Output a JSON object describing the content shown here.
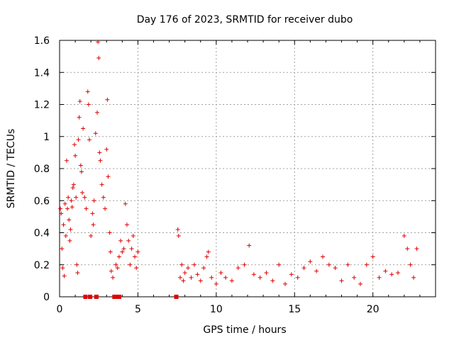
{
  "chart_data": {
    "type": "scatter",
    "title": "Day 176 of 2023, SRMTID for receiver dubo",
    "xlabel": "GPS time / hours",
    "ylabel": "SRMTID / TECUs",
    "xlim": [
      0,
      24
    ],
    "ylim": [
      0,
      1.6
    ],
    "xticks": [
      0,
      5,
      10,
      15,
      20
    ],
    "yticks": [
      0,
      0.2,
      0.4,
      0.6,
      0.8,
      1,
      1.2,
      1.4,
      1.6
    ],
    "xtick_labels": [
      "0",
      "5",
      "10",
      "15",
      "20"
    ],
    "ytick_labels": [
      "0",
      "0.2",
      "0.4",
      "0.6",
      "0.8",
      "1",
      "1.2",
      "1.4",
      "1.6"
    ],
    "grid": true,
    "marker": "+",
    "color": "#e00000",
    "series": [
      {
        "name": "dubo",
        "points": [
          [
            0.05,
            0.55
          ],
          [
            0.1,
            0.52
          ],
          [
            0.15,
            0.3
          ],
          [
            0.2,
            0.18
          ],
          [
            0.25,
            0.45
          ],
          [
            0.3,
            0.13
          ],
          [
            0.35,
            0.58
          ],
          [
            0.4,
            0.38
          ],
          [
            0.45,
            0.85
          ],
          [
            0.5,
            0.55
          ],
          [
            0.55,
            0.62
          ],
          [
            0.6,
            0.48
          ],
          [
            0.65,
            0.35
          ],
          [
            0.7,
            0.42
          ],
          [
            0.75,
            0.6
          ],
          [
            0.8,
            0.56
          ],
          [
            0.85,
            0.68
          ],
          [
            0.9,
            0.7
          ],
          [
            0.95,
            0.95
          ],
          [
            1.0,
            0.88
          ],
          [
            1.05,
            0.62
          ],
          [
            1.1,
            0.2
          ],
          [
            1.15,
            0.15
          ],
          [
            1.2,
            0.98
          ],
          [
            1.25,
            1.12
          ],
          [
            1.3,
            1.22
          ],
          [
            1.35,
            0.82
          ],
          [
            1.4,
            0.78
          ],
          [
            1.45,
            0.65
          ],
          [
            1.5,
            1.05
          ],
          [
            1.6,
            0.62
          ],
          [
            1.7,
            0.55
          ],
          [
            1.8,
            1.28
          ],
          [
            1.85,
            1.2
          ],
          [
            1.9,
            0.98
          ],
          [
            2.0,
            0.38
          ],
          [
            2.1,
            0.52
          ],
          [
            2.15,
            0.45
          ],
          [
            2.2,
            0.6
          ],
          [
            2.3,
            1.02
          ],
          [
            2.4,
            1.15
          ],
          [
            2.45,
            1.59
          ],
          [
            2.5,
            1.49
          ],
          [
            2.55,
            0.9
          ],
          [
            2.6,
            0.85
          ],
          [
            2.7,
            0.7
          ],
          [
            2.8,
            0.62
          ],
          [
            2.9,
            0.55
          ],
          [
            3.0,
            0.92
          ],
          [
            3.05,
            1.23
          ],
          [
            3.1,
            0.75
          ],
          [
            3.2,
            0.4
          ],
          [
            3.25,
            0.28
          ],
          [
            3.3,
            0.16
          ],
          [
            3.4,
            0.12
          ],
          [
            3.6,
            0.2
          ],
          [
            3.7,
            0.18
          ],
          [
            3.8,
            0.25
          ],
          [
            3.9,
            0.35
          ],
          [
            4.0,
            0.28
          ],
          [
            4.1,
            0.3
          ],
          [
            4.2,
            0.58
          ],
          [
            4.3,
            0.45
          ],
          [
            4.4,
            0.35
          ],
          [
            4.5,
            0.2
          ],
          [
            4.6,
            0.3
          ],
          [
            4.7,
            0.38
          ],
          [
            4.8,
            0.25
          ],
          [
            4.9,
            0.18
          ],
          [
            5.0,
            0.28
          ],
          [
            7.55,
            0.42
          ],
          [
            7.6,
            0.38
          ],
          [
            7.7,
            0.12
          ],
          [
            7.8,
            0.2
          ],
          [
            7.9,
            0.1
          ],
          [
            8.0,
            0.15
          ],
          [
            8.2,
            0.18
          ],
          [
            8.4,
            0.12
          ],
          [
            8.6,
            0.2
          ],
          [
            8.8,
            0.14
          ],
          [
            9.0,
            0.1
          ],
          [
            9.2,
            0.18
          ],
          [
            9.4,
            0.25
          ],
          [
            9.5,
            0.28
          ],
          [
            9.7,
            0.12
          ],
          [
            10.0,
            0.08
          ],
          [
            10.3,
            0.15
          ],
          [
            10.6,
            0.12
          ],
          [
            11.0,
            0.1
          ],
          [
            11.4,
            0.18
          ],
          [
            11.8,
            0.2
          ],
          [
            12.1,
            0.32
          ],
          [
            12.4,
            0.14
          ],
          [
            12.8,
            0.12
          ],
          [
            13.2,
            0.15
          ],
          [
            13.6,
            0.1
          ],
          [
            14.0,
            0.2
          ],
          [
            14.4,
            0.08
          ],
          [
            14.8,
            0.14
          ],
          [
            15.2,
            0.12
          ],
          [
            15.6,
            0.18
          ],
          [
            16.0,
            0.22
          ],
          [
            16.4,
            0.16
          ],
          [
            16.8,
            0.25
          ],
          [
            17.2,
            0.2
          ],
          [
            17.6,
            0.18
          ],
          [
            18.0,
            0.1
          ],
          [
            18.4,
            0.2
          ],
          [
            18.8,
            0.12
          ],
          [
            19.2,
            0.08
          ],
          [
            19.6,
            0.2
          ],
          [
            20.0,
            0.25
          ],
          [
            20.4,
            0.12
          ],
          [
            20.8,
            0.16
          ],
          [
            21.2,
            0.14
          ],
          [
            21.6,
            0.15
          ],
          [
            22.0,
            0.38
          ],
          [
            22.2,
            0.3
          ],
          [
            22.4,
            0.2
          ],
          [
            22.6,
            0.12
          ],
          [
            22.8,
            0.3
          ]
        ]
      }
    ],
    "zero_markers_x": [
      1.65,
      1.95,
      2.35,
      3.5,
      3.6,
      3.7,
      3.8,
      7.45
    ]
  }
}
